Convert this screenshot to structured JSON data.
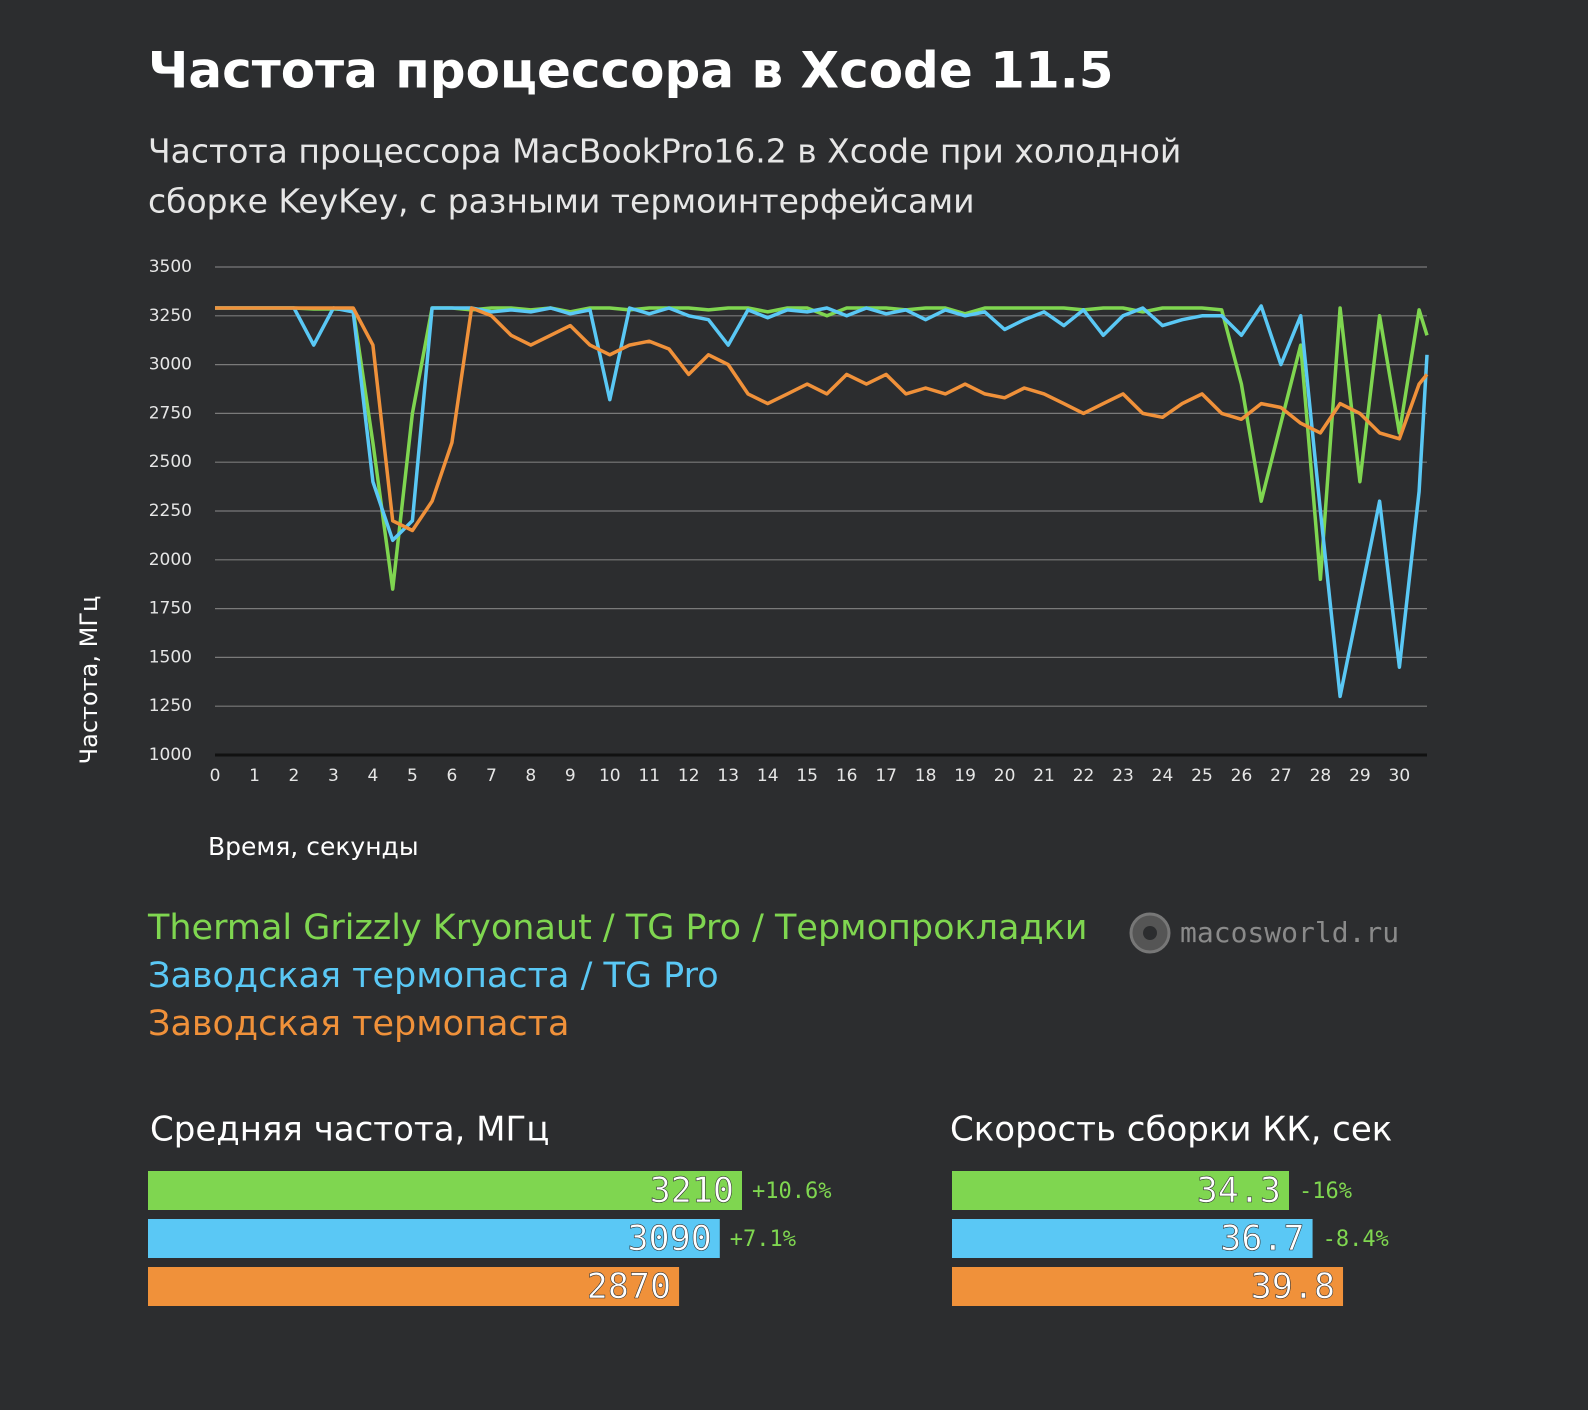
{
  "chart_data": [
    {
      "type": "line",
      "title": "Частота процессора в Xcode 11.5",
      "subtitle": [
        "Частота процессора MacBookPro16.2 в Xcode при холодной",
        "сборке KeyKey, с разными термоинтерфейсами"
      ],
      "x_label": "Время, секунды",
      "y_label": "Частота, МГц",
      "x": [
        0,
        0.5,
        1,
        1.5,
        2,
        2.5,
        3,
        3.5,
        4,
        4.5,
        5,
        5.5,
        6,
        6.5,
        7,
        7.5,
        8,
        8.5,
        9,
        9.5,
        10,
        10.5,
        11,
        11.5,
        12,
        12.5,
        13,
        13.5,
        14,
        14.5,
        15,
        15.5,
        16,
        16.5,
        17,
        17.5,
        18,
        18.5,
        19,
        19.5,
        20,
        20.5,
        21,
        21.5,
        22,
        22.5,
        23,
        23.5,
        24,
        24.5,
        25,
        25.5,
        26,
        26.5,
        27,
        27.5,
        28,
        28.5,
        29,
        29.5,
        30,
        30.5,
        30.7
      ],
      "series": [
        {
          "name": "Thermal Grizzly Kryonaut / TG Pro / Термопрокладки",
          "color": "#7fd650",
          "values": [
            3290,
            3290,
            3290,
            3290,
            3290,
            3285,
            3285,
            3280,
            2600,
            1850,
            2750,
            3290,
            3290,
            3280,
            3290,
            3290,
            3280,
            3290,
            3270,
            3290,
            3290,
            3280,
            3290,
            3290,
            3290,
            3280,
            3290,
            3290,
            3270,
            3290,
            3290,
            3250,
            3290,
            3290,
            3290,
            3280,
            3290,
            3290,
            3260,
            3290,
            3290,
            3290,
            3290,
            3290,
            3280,
            3290,
            3290,
            3270,
            3290,
            3290,
            3290,
            3280,
            2900,
            2300,
            2700,
            3100,
            1900,
            3290,
            2400,
            3250,
            2650,
            3280,
            3150
          ]
        },
        {
          "name": "Заводская термопаста / TG Pro",
          "color": "#5ac8f5",
          "values": [
            3290,
            3290,
            3290,
            3290,
            3290,
            3100,
            3290,
            3270,
            2400,
            2100,
            2200,
            3290,
            3290,
            3290,
            3270,
            3280,
            3270,
            3290,
            3260,
            3280,
            2820,
            3290,
            3260,
            3290,
            3250,
            3230,
            3100,
            3280,
            3240,
            3280,
            3270,
            3290,
            3250,
            3290,
            3260,
            3280,
            3230,
            3280,
            3250,
            3270,
            3180,
            3230,
            3270,
            3200,
            3280,
            3150,
            3250,
            3290,
            3200,
            3230,
            3250,
            3250,
            3150,
            3300,
            3000,
            3250,
            2250,
            1300,
            1800,
            2300,
            1450,
            2350,
            3050
          ]
        },
        {
          "name": "Заводская термопаста",
          "color": "#f0913a",
          "values": [
            3290,
            3290,
            3290,
            3290,
            3290,
            3290,
            3290,
            3290,
            3100,
            2200,
            2150,
            2300,
            2600,
            3290,
            3250,
            3150,
            3100,
            3150,
            3200,
            3100,
            3050,
            3100,
            3120,
            3080,
            2950,
            3050,
            3000,
            2850,
            2800,
            2850,
            2900,
            2850,
            2950,
            2900,
            2950,
            2850,
            2880,
            2850,
            2900,
            2850,
            2830,
            2880,
            2850,
            2800,
            2750,
            2800,
            2850,
            2750,
            2730,
            2800,
            2850,
            2750,
            2720,
            2800,
            2780,
            2700,
            2650,
            2800,
            2750,
            2650,
            2620,
            2900,
            2950
          ]
        }
      ],
      "xlim": [
        0,
        30.7
      ],
      "xticks": [
        0,
        1,
        2,
        3,
        4,
        5,
        6,
        7,
        8,
        9,
        10,
        11,
        12,
        13,
        14,
        15,
        16,
        17,
        18,
        19,
        20,
        21,
        22,
        23,
        24,
        25,
        26,
        27,
        28,
        29,
        30
      ],
      "ylim": [
        1000,
        3500
      ],
      "yticks": [
        1000,
        1250,
        1500,
        1750,
        2000,
        2250,
        2500,
        2750,
        3000,
        3250,
        3500
      ],
      "grid": true,
      "watermark": "macosworld.ru"
    },
    {
      "type": "bar",
      "orientation": "horizontal",
      "title": "Средняя частота, МГц",
      "values": [
        3210,
        3090,
        2870
      ],
      "colors": [
        "#7fd650",
        "#5ac8f5",
        "#f0913a"
      ],
      "changes": [
        "+10.6%",
        "+7.1%"
      ]
    },
    {
      "type": "bar",
      "orientation": "horizontal",
      "title": "Скорость сборки КК, сек",
      "values": [
        34.3,
        36.7,
        39.8
      ],
      "colors": [
        "#7fd650",
        "#5ac8f5",
        "#f0913a"
      ],
      "changes": [
        "-16%",
        "-8.4%"
      ]
    }
  ]
}
